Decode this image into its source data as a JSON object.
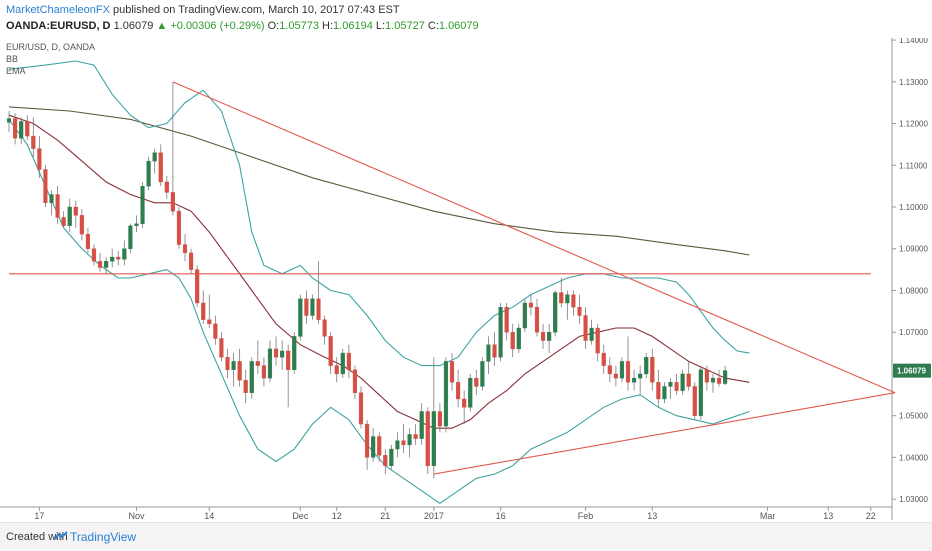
{
  "header": {
    "author": "MarketChameleonFX",
    "published": "published on TradingView.com, March 10, 2017 07:43 EST",
    "symbol": "OANDA:EURUSD, D",
    "last": "1.06079",
    "change": "+0.00306 (+0.29%)",
    "open_label": "O:",
    "open": "1.05773",
    "high_label": "H:",
    "high": "1.06194",
    "low_label": "L:",
    "low": "1.05727",
    "close_label": "C:",
    "close": "1.06079"
  },
  "footer": {
    "created": "Created with",
    "brand": "TradingView"
  },
  "colors": {
    "up": "#2e7d4f",
    "down": "#d64f45",
    "bb_band": "#3fa3a3",
    "bb_basis": "#8a2e38",
    "ema": "#5b5a3a",
    "trend": "#e05a50",
    "price_tag": "#2e7d4f"
  },
  "chart_data": {
    "type": "candlestick",
    "legend": [
      "EUR/USD, D, OANDA",
      "BB",
      "EMA"
    ],
    "legend_placement": "top-left",
    "price_label": "1.06079",
    "ylim": [
      1.025,
      1.1405
    ],
    "y_ticks": [
      "1.14000",
      "1.13000",
      "1.12000",
      "1.11000",
      "1.10000",
      "1.09000",
      "1.08000",
      "1.07000",
      "1.06000",
      "1.05000",
      "1.04000",
      "1.03000"
    ],
    "y_tick_values": [
      1.14,
      1.13,
      1.12,
      1.11,
      1.1,
      1.09,
      1.08,
      1.07,
      1.06,
      1.05,
      1.04,
      1.03
    ],
    "x_tick_labels": [
      "17",
      "Nov",
      "14",
      "Dec",
      "12",
      "21",
      "2017",
      "16",
      "Feb",
      "13",
      "Mar",
      "13",
      "22"
    ],
    "x_tick_bars": [
      5,
      21,
      33,
      48,
      54,
      62,
      70,
      81,
      95,
      106,
      125,
      135,
      142
    ],
    "n_bars": 146,
    "ohlc": [
      [
        1.1203,
        1.123,
        1.118,
        1.1212
      ],
      [
        1.1212,
        1.1225,
        1.115,
        1.1165
      ],
      [
        1.1165,
        1.1215,
        1.115,
        1.1205
      ],
      [
        1.1205,
        1.122,
        1.116,
        1.117
      ],
      [
        1.117,
        1.1215,
        1.112,
        1.114
      ],
      [
        1.114,
        1.117,
        1.107,
        1.109
      ],
      [
        1.109,
        1.11,
        1.1,
        1.101
      ],
      [
        1.101,
        1.104,
        1.098,
        1.103
      ],
      [
        1.103,
        1.105,
        1.096,
        1.0975
      ],
      [
        1.0975,
        1.099,
        1.095,
        1.0955
      ],
      [
        1.0955,
        1.102,
        1.094,
        1.1
      ],
      [
        1.1,
        1.1015,
        1.095,
        1.098
      ],
      [
        1.098,
        1.0995,
        1.092,
        1.0935
      ],
      [
        1.0935,
        1.095,
        1.089,
        1.09
      ],
      [
        1.09,
        1.091,
        1.086,
        1.087
      ],
      [
        1.087,
        1.089,
        1.0845,
        1.0855
      ],
      [
        1.0855,
        1.088,
        1.084,
        1.087
      ],
      [
        1.087,
        1.09,
        1.0855,
        1.088
      ],
      [
        1.088,
        1.0895,
        1.086,
        1.0875
      ],
      [
        1.0875,
        1.092,
        1.086,
        1.09
      ],
      [
        1.09,
        1.096,
        1.089,
        1.0955
      ],
      [
        1.0955,
        1.098,
        1.094,
        1.096
      ],
      [
        1.096,
        1.106,
        1.095,
        1.105
      ],
      [
        1.105,
        1.112,
        1.104,
        1.111
      ],
      [
        1.111,
        1.114,
        1.108,
        1.113
      ],
      [
        1.113,
        1.115,
        1.105,
        1.106
      ],
      [
        1.106,
        1.1075,
        1.102,
        1.1035
      ],
      [
        1.1035,
        1.13,
        1.098,
        1.099
      ],
      [
        1.099,
        1.1,
        1.09,
        1.091
      ],
      [
        1.091,
        1.0935,
        1.087,
        1.089
      ],
      [
        1.089,
        1.09,
        1.084,
        1.085
      ],
      [
        1.085,
        1.086,
        1.076,
        1.077
      ],
      [
        1.077,
        1.08,
        1.072,
        1.073
      ],
      [
        1.073,
        1.079,
        1.071,
        1.072
      ],
      [
        1.072,
        1.074,
        1.067,
        1.0685
      ],
      [
        1.0685,
        1.07,
        1.063,
        1.064
      ],
      [
        1.064,
        1.066,
        1.059,
        1.061
      ],
      [
        1.061,
        1.065,
        1.057,
        1.063
      ],
      [
        1.063,
        1.066,
        1.057,
        1.0585
      ],
      [
        1.0585,
        1.061,
        1.053,
        1.0555
      ],
      [
        1.0555,
        1.064,
        1.054,
        1.063
      ],
      [
        1.063,
        1.068,
        1.06,
        1.062
      ],
      [
        1.062,
        1.064,
        1.057,
        1.059
      ],
      [
        1.059,
        1.068,
        1.058,
        1.066
      ],
      [
        1.066,
        1.069,
        1.062,
        1.064
      ],
      [
        1.064,
        1.068,
        1.061,
        1.0655
      ],
      [
        1.0655,
        1.067,
        1.052,
        1.061
      ],
      [
        1.061,
        1.07,
        1.06,
        1.069
      ],
      [
        1.069,
        1.079,
        1.068,
        1.078
      ],
      [
        1.078,
        1.08,
        1.072,
        1.074
      ],
      [
        1.074,
        1.079,
        1.073,
        1.078
      ],
      [
        1.078,
        1.087,
        1.072,
        1.073
      ],
      [
        1.073,
        1.074,
        1.067,
        1.069
      ],
      [
        1.069,
        1.07,
        1.06,
        1.062
      ],
      [
        1.062,
        1.064,
        1.058,
        1.06
      ],
      [
        1.06,
        1.066,
        1.059,
        1.065
      ],
      [
        1.065,
        1.067,
        1.059,
        1.061
      ],
      [
        1.061,
        1.062,
        1.054,
        1.0555
      ],
      [
        1.0555,
        1.057,
        1.047,
        1.048
      ],
      [
        1.048,
        1.049,
        1.037,
        1.04
      ],
      [
        1.04,
        1.047,
        1.039,
        1.045
      ],
      [
        1.045,
        1.046,
        1.039,
        1.0405
      ],
      [
        1.0405,
        1.042,
        1.036,
        1.038
      ],
      [
        1.038,
        1.043,
        1.037,
        1.042
      ],
      [
        1.042,
        1.046,
        1.04,
        1.044
      ],
      [
        1.044,
        1.048,
        1.041,
        1.043
      ],
      [
        1.043,
        1.047,
        1.04,
        1.0455
      ],
      [
        1.0455,
        1.048,
        1.043,
        1.0445
      ],
      [
        1.0445,
        1.053,
        1.043,
        1.051
      ],
      [
        1.051,
        1.052,
        1.036,
        1.038
      ],
      [
        1.038,
        1.064,
        1.035,
        1.051
      ],
      [
        1.051,
        1.053,
        1.046,
        1.0475
      ],
      [
        1.0475,
        1.064,
        1.046,
        1.063
      ],
      [
        1.063,
        1.065,
        1.056,
        1.058
      ],
      [
        1.058,
        1.061,
        1.052,
        1.054
      ],
      [
        1.054,
        1.056,
        1.048,
        1.052
      ],
      [
        1.052,
        1.06,
        1.051,
        1.059
      ],
      [
        1.059,
        1.061,
        1.055,
        1.057
      ],
      [
        1.057,
        1.064,
        1.056,
        1.063
      ],
      [
        1.063,
        1.069,
        1.06,
        1.067
      ],
      [
        1.067,
        1.07,
        1.062,
        1.064
      ],
      [
        1.064,
        1.077,
        1.063,
        1.076
      ],
      [
        1.076,
        1.077,
        1.068,
        1.07
      ],
      [
        1.07,
        1.072,
        1.064,
        1.066
      ],
      [
        1.066,
        1.072,
        1.065,
        1.071
      ],
      [
        1.071,
        1.078,
        1.07,
        1.077
      ],
      [
        1.077,
        1.079,
        1.074,
        1.076
      ],
      [
        1.076,
        1.078,
        1.069,
        1.07
      ],
      [
        1.07,
        1.072,
        1.066,
        1.068
      ],
      [
        1.068,
        1.072,
        1.065,
        1.07
      ],
      [
        1.07,
        1.08,
        1.069,
        1.0795
      ],
      [
        1.0795,
        1.083,
        1.076,
        1.077
      ],
      [
        1.077,
        1.08,
        1.073,
        1.079
      ],
      [
        1.079,
        1.08,
        1.074,
        1.076
      ],
      [
        1.076,
        1.079,
        1.072,
        1.074
      ],
      [
        1.074,
        1.076,
        1.066,
        1.068
      ],
      [
        1.068,
        1.073,
        1.067,
        1.071
      ],
      [
        1.071,
        1.072,
        1.063,
        1.065
      ],
      [
        1.065,
        1.067,
        1.06,
        1.062
      ],
      [
        1.062,
        1.064,
        1.058,
        1.06
      ],
      [
        1.06,
        1.062,
        1.057,
        1.059
      ],
      [
        1.059,
        1.064,
        1.058,
        1.063
      ],
      [
        1.063,
        1.069,
        1.056,
        1.058
      ],
      [
        1.058,
        1.061,
        1.056,
        1.059
      ],
      [
        1.059,
        1.062,
        1.055,
        1.06
      ],
      [
        1.06,
        1.065,
        1.059,
        1.064
      ],
      [
        1.064,
        1.066,
        1.056,
        1.058
      ],
      [
        1.058,
        1.061,
        1.052,
        1.054
      ],
      [
        1.054,
        1.058,
        1.053,
        1.057
      ],
      [
        1.057,
        1.059,
        1.054,
        1.058
      ],
      [
        1.058,
        1.06,
        1.055,
        1.056
      ],
      [
        1.056,
        1.061,
        1.055,
        1.06
      ],
      [
        1.06,
        1.063,
        1.056,
        1.057
      ],
      [
        1.057,
        1.058,
        1.049,
        1.05
      ],
      [
        1.05,
        1.062,
        1.049,
        1.061
      ],
      [
        1.061,
        1.062,
        1.056,
        1.058
      ],
      [
        1.058,
        1.06,
        1.0555,
        1.059
      ],
      [
        1.059,
        1.061,
        1.057,
        1.0577
      ],
      [
        1.0577,
        1.0619,
        1.0573,
        1.0608
      ]
    ],
    "bb_upper": [
      [
        0,
        1.133
      ],
      [
        6,
        1.134
      ],
      [
        11,
        1.135
      ],
      [
        14,
        1.134
      ],
      [
        17,
        1.127
      ],
      [
        20,
        1.122
      ],
      [
        23,
        1.119
      ],
      [
        26,
        1.12
      ],
      [
        29,
        1.125
      ],
      [
        32,
        1.128
      ],
      [
        35,
        1.123
      ],
      [
        38,
        1.11
      ],
      [
        40,
        1.094
      ],
      [
        42,
        1.086
      ],
      [
        45,
        1.084
      ],
      [
        48,
        1.086
      ],
      [
        50,
        1.083
      ],
      [
        53,
        1.08
      ],
      [
        56,
        1.079
      ],
      [
        59,
        1.074
      ],
      [
        62,
        1.068
      ],
      [
        65,
        1.064
      ],
      [
        68,
        1.062
      ],
      [
        71,
        1.062
      ],
      [
        74,
        1.064
      ],
      [
        77,
        1.07
      ],
      [
        80,
        1.074
      ],
      [
        83,
        1.076
      ],
      [
        86,
        1.079
      ],
      [
        89,
        1.081
      ],
      [
        92,
        1.083
      ],
      [
        95,
        1.084
      ],
      [
        98,
        1.084
      ],
      [
        101,
        1.083
      ],
      [
        104,
        1.083
      ],
      [
        107,
        1.083
      ],
      [
        110,
        1.082
      ],
      [
        112,
        1.079
      ],
      [
        114,
        1.075
      ],
      [
        116,
        1.071
      ],
      [
        118,
        1.068
      ],
      [
        120,
        1.0655
      ],
      [
        122,
        1.065
      ]
    ],
    "bb_lower": [
      [
        0,
        1.121
      ],
      [
        3,
        1.115
      ],
      [
        6,
        1.105
      ],
      [
        9,
        1.095
      ],
      [
        12,
        1.09
      ],
      [
        15,
        1.086
      ],
      [
        18,
        1.083
      ],
      [
        20,
        1.083
      ],
      [
        23,
        1.084
      ],
      [
        26,
        1.085
      ],
      [
        28,
        1.083
      ],
      [
        30,
        1.078
      ],
      [
        32,
        1.07
      ],
      [
        35,
        1.06
      ],
      [
        38,
        1.05
      ],
      [
        41,
        1.042
      ],
      [
        44,
        1.039
      ],
      [
        47,
        1.042
      ],
      [
        50,
        1.048
      ],
      [
        53,
        1.052
      ],
      [
        56,
        1.049
      ],
      [
        59,
        1.043
      ],
      [
        62,
        1.038
      ],
      [
        65,
        1.035
      ],
      [
        68,
        1.032
      ],
      [
        71,
        1.029
      ],
      [
        74,
        1.032
      ],
      [
        77,
        1.035
      ],
      [
        80,
        1.036
      ],
      [
        83,
        1.038
      ],
      [
        86,
        1.042
      ],
      [
        89,
        1.044
      ],
      [
        92,
        1.046
      ],
      [
        95,
        1.049
      ],
      [
        98,
        1.052
      ],
      [
        101,
        1.054
      ],
      [
        104,
        1.055
      ],
      [
        107,
        1.052
      ],
      [
        110,
        1.05
      ],
      [
        113,
        1.049
      ],
      [
        116,
        1.048
      ],
      [
        118,
        1.049
      ],
      [
        120,
        1.05
      ],
      [
        122,
        1.051
      ]
    ],
    "bb_basis": [
      [
        0,
        1.122
      ],
      [
        4,
        1.12
      ],
      [
        8,
        1.116
      ],
      [
        12,
        1.111
      ],
      [
        16,
        1.106
      ],
      [
        20,
        1.103
      ],
      [
        24,
        1.101
      ],
      [
        27,
        1.101
      ],
      [
        30,
        1.099
      ],
      [
        33,
        1.094
      ],
      [
        36,
        1.088
      ],
      [
        40,
        1.08
      ],
      [
        44,
        1.072
      ],
      [
        48,
        1.067
      ],
      [
        52,
        1.064
      ],
      [
        55,
        1.062
      ],
      [
        58,
        1.059
      ],
      [
        61,
        1.055
      ],
      [
        64,
        1.051
      ],
      [
        67,
        1.049
      ],
      [
        70,
        1.047
      ],
      [
        73,
        1.047
      ],
      [
        76,
        1.049
      ],
      [
        79,
        1.053
      ],
      [
        82,
        1.056
      ],
      [
        85,
        1.06
      ],
      [
        88,
        1.063
      ],
      [
        91,
        1.066
      ],
      [
        94,
        1.069
      ],
      [
        97,
        1.07
      ],
      [
        100,
        1.071
      ],
      [
        103,
        1.071
      ],
      [
        106,
        1.069
      ],
      [
        109,
        1.066
      ],
      [
        112,
        1.063
      ],
      [
        115,
        1.061
      ],
      [
        118,
        1.059
      ],
      [
        120,
        1.0585
      ],
      [
        122,
        1.058
      ]
    ],
    "ema": [
      [
        0,
        1.124
      ],
      [
        10,
        1.123
      ],
      [
        20,
        1.121
      ],
      [
        30,
        1.117
      ],
      [
        40,
        1.112
      ],
      [
        50,
        1.107
      ],
      [
        60,
        1.103
      ],
      [
        70,
        1.099
      ],
      [
        80,
        1.096
      ],
      [
        90,
        1.094
      ],
      [
        100,
        1.093
      ],
      [
        110,
        1.091
      ],
      [
        118,
        1.0895
      ],
      [
        122,
        1.0885
      ]
    ],
    "trend_lines": [
      {
        "from": [
          27,
          1.13
        ],
        "to": [
          146,
          1.0555
        ]
      },
      {
        "from": [
          70,
          1.036
        ],
        "to": [
          146,
          1.0555
        ]
      },
      {
        "from": [
          0,
          1.084
        ],
        "to": [
          142,
          1.084
        ]
      }
    ]
  }
}
